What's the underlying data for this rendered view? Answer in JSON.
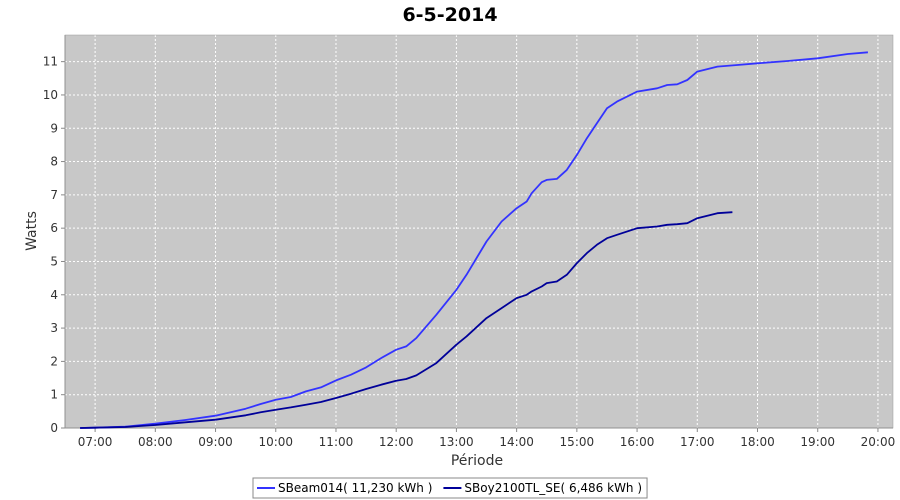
{
  "chart_data": {
    "type": "line",
    "title": "6-5-2014",
    "xlabel": "Période",
    "ylabel": "Watts",
    "xlim": [
      "06:30",
      "20:15"
    ],
    "ylim": [
      0,
      11.8
    ],
    "x_ticks": [
      "07:00",
      "08:00",
      "09:00",
      "10:00",
      "11:00",
      "12:00",
      "13:00",
      "14:00",
      "15:00",
      "16:00",
      "17:00",
      "18:00",
      "19:00",
      "20:00"
    ],
    "y_ticks": [
      0,
      1,
      2,
      3,
      4,
      5,
      6,
      7,
      8,
      9,
      10,
      11
    ],
    "grid": true,
    "legend_position": "bottom",
    "plot_background": "#c8c8c8",
    "series": [
      {
        "name": "SBeam014( 11,230 kWh )",
        "color": "#3333ff",
        "x": [
          "06:45",
          "07:00",
          "07:30",
          "08:00",
          "08:30",
          "09:00",
          "09:30",
          "09:45",
          "10:00",
          "10:15",
          "10:30",
          "10:45",
          "11:00",
          "11:15",
          "11:30",
          "11:45",
          "12:00",
          "12:10",
          "12:20",
          "12:40",
          "13:00",
          "13:10",
          "13:30",
          "13:45",
          "14:00",
          "14:10",
          "14:15",
          "14:25",
          "14:30",
          "14:40",
          "14:50",
          "15:00",
          "15:10",
          "15:20",
          "15:30",
          "15:40",
          "16:00",
          "16:20",
          "16:30",
          "16:40",
          "16:50",
          "17:00",
          "17:20",
          "17:40",
          "18:00",
          "18:30",
          "19:00",
          "19:30",
          "19:50"
        ],
        "y": [
          0,
          0.01,
          0.04,
          0.13,
          0.24,
          0.37,
          0.58,
          0.72,
          0.85,
          0.93,
          1.1,
          1.22,
          1.43,
          1.6,
          1.82,
          2.1,
          2.35,
          2.45,
          2.7,
          3.4,
          4.15,
          4.6,
          5.6,
          6.2,
          6.6,
          6.8,
          7.05,
          7.38,
          7.45,
          7.48,
          7.75,
          8.2,
          8.7,
          9.15,
          9.6,
          9.8,
          10.1,
          10.2,
          10.3,
          10.32,
          10.45,
          10.7,
          10.85,
          10.9,
          10.95,
          11.02,
          11.1,
          11.23,
          11.28
        ]
      },
      {
        "name": "SBoy2100TL_SE( 6,486 kWh )",
        "color": "#000099",
        "x": [
          "06:45",
          "07:00",
          "07:30",
          "08:00",
          "08:30",
          "09:00",
          "09:30",
          "09:45",
          "10:00",
          "10:15",
          "10:30",
          "10:45",
          "11:00",
          "11:15",
          "11:30",
          "11:45",
          "12:00",
          "12:10",
          "12:20",
          "12:40",
          "13:00",
          "13:10",
          "13:30",
          "13:45",
          "14:00",
          "14:10",
          "14:15",
          "14:25",
          "14:30",
          "14:40",
          "14:50",
          "15:00",
          "15:10",
          "15:20",
          "15:30",
          "15:40",
          "16:00",
          "16:20",
          "16:30",
          "16:40",
          "16:50",
          "17:00",
          "17:20",
          "17:35"
        ],
        "y": [
          0,
          0.01,
          0.03,
          0.09,
          0.17,
          0.25,
          0.38,
          0.47,
          0.55,
          0.62,
          0.7,
          0.78,
          0.9,
          1.03,
          1.17,
          1.3,
          1.42,
          1.47,
          1.58,
          1.95,
          2.5,
          2.75,
          3.3,
          3.6,
          3.9,
          4.0,
          4.1,
          4.25,
          4.35,
          4.4,
          4.6,
          4.95,
          5.25,
          5.5,
          5.7,
          5.8,
          6.0,
          6.05,
          6.1,
          6.12,
          6.15,
          6.3,
          6.45,
          6.48
        ]
      }
    ]
  }
}
